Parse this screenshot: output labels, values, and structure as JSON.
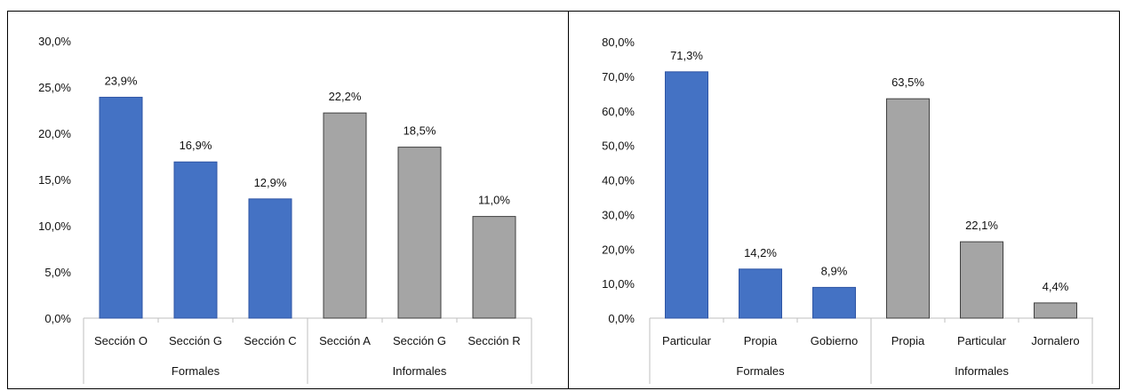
{
  "chart_data": [
    {
      "type": "bar",
      "groups": [
        {
          "name": "Formales",
          "categories": [
            "Sección O",
            "Sección G",
            "Sección C"
          ],
          "values": [
            23.9,
            16.9,
            12.9
          ],
          "color": "#4472C4"
        },
        {
          "name": "Informales",
          "categories": [
            "Sección A",
            "Sección G",
            "Sección R"
          ],
          "values": [
            22.2,
            18.5,
            11.0
          ],
          "color": "#A5A5A5"
        }
      ],
      "data_labels": [
        "23,9%",
        "16,9%",
        "12,9%",
        "22,2%",
        "18,5%",
        "11,0%"
      ],
      "yticks": [
        "0,0%",
        "5,0%",
        "10,0%",
        "15,0%",
        "20,0%",
        "25,0%",
        "30,0%"
      ],
      "ylim": [
        0,
        30
      ],
      "grid": false,
      "legend": "none"
    },
    {
      "type": "bar",
      "groups": [
        {
          "name": "Formales",
          "categories": [
            "Particular",
            "Propia",
            "Gobierno"
          ],
          "values": [
            71.3,
            14.2,
            8.9
          ],
          "color": "#4472C4"
        },
        {
          "name": "Informales",
          "categories": [
            "Propia",
            "Particular",
            "Jornalero"
          ],
          "values": [
            63.5,
            22.1,
            4.4
          ],
          "color": "#A5A5A5"
        }
      ],
      "data_labels": [
        "71,3%",
        "14,2%",
        "8,9%",
        "63,5%",
        "22,1%",
        "4,4%"
      ],
      "yticks": [
        "0,0%",
        "10,0%",
        "20,0%",
        "30,0%",
        "40,0%",
        "50,0%",
        "60,0%",
        "70,0%",
        "80,0%"
      ],
      "ylim": [
        0,
        80
      ],
      "grid": false,
      "legend": "none"
    }
  ]
}
